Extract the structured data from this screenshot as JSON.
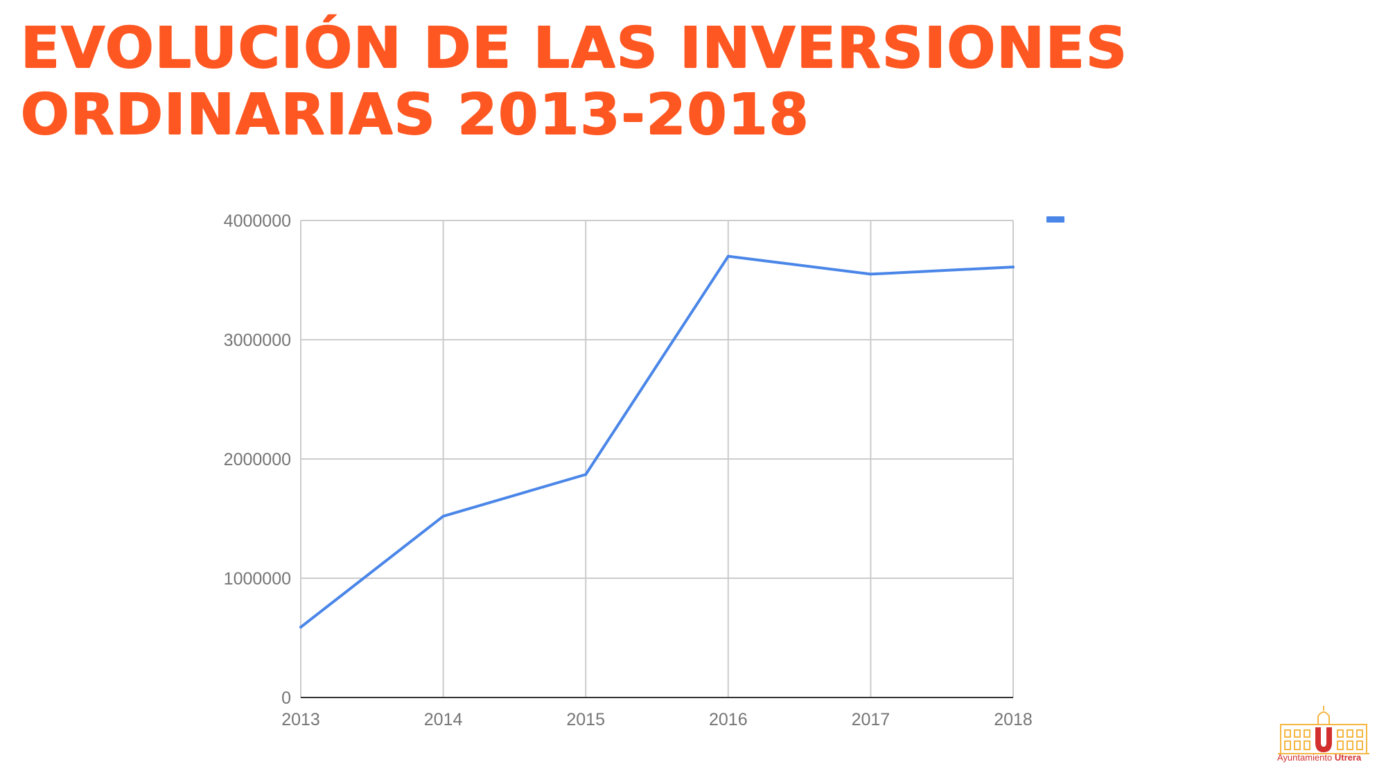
{
  "title": {
    "line1": "EVOLUCIÓN DE LAS INVERSIONES",
    "line2": "ORDINARIAS 2013-2018"
  },
  "chart_data": {
    "type": "line",
    "title": "",
    "xlabel": "",
    "ylabel": "",
    "categories": [
      "2013",
      "2014",
      "2015",
      "2016",
      "2017",
      "2018"
    ],
    "series": [
      {
        "values": [
          590000,
          1520000,
          1870000,
          3700000,
          3550000,
          3610000
        ],
        "color": "#4a86e8"
      }
    ],
    "ylim": [
      0,
      4000000
    ],
    "yticks": [
      "0",
      "1000000",
      "2000000",
      "3000000",
      "4000000"
    ],
    "grid": true,
    "legend_position": "top-right"
  },
  "logo": {
    "text_regular": "Ayuntamiento ",
    "text_bold": "Utrera",
    "colors": {
      "building": "#f5b642",
      "letter": "#d32f2f"
    }
  }
}
